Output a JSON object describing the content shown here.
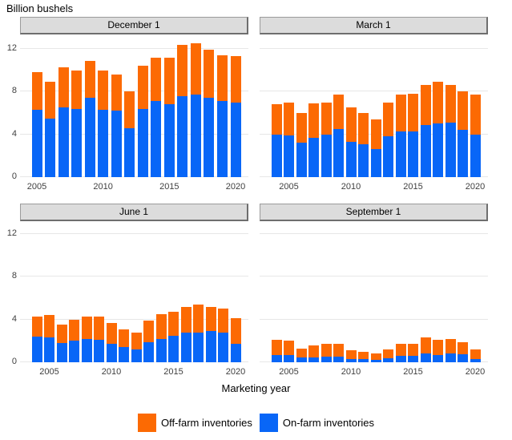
{
  "title": "Billion bushels",
  "x_axis_title": "Marketing year",
  "legend": {
    "items": [
      {
        "label": "Off-farm inventories",
        "color": "#fc6a03",
        "series": "off_farm"
      },
      {
        "label": "On-farm inventories",
        "color": "#0866f7",
        "series": "on_farm"
      }
    ]
  },
  "chart_data": {
    "type": "bar",
    "stacked": true,
    "title": "Billion bushels",
    "xlabel": "Marketing year",
    "ylabel": "Billion bushels",
    "unit": "billion bushels",
    "ylim": [
      0,
      13.35
    ],
    "yticks": [
      0,
      4,
      8,
      12
    ],
    "xticks": [
      2005,
      2010,
      2015,
      2020
    ],
    "grid": "horizontal-major-only",
    "legend_position": "bottom",
    "series_colors": {
      "off_farm": "#fc6a03",
      "on_farm": "#0866f7"
    },
    "panels": [
      {
        "label": "December 1",
        "years": [
          2005,
          2006,
          2007,
          2008,
          2009,
          2010,
          2011,
          2012,
          2013,
          2014,
          2015,
          2016,
          2017,
          2018,
          2019,
          2020
        ],
        "on_farm": [
          6.3,
          5.5,
          6.5,
          6.4,
          7.4,
          6.3,
          6.2,
          4.6,
          6.4,
          7.1,
          6.8,
          7.6,
          7.7,
          7.4,
          7.1,
          7.0
        ],
        "off_farm": [
          3.5,
          3.4,
          3.8,
          3.6,
          3.5,
          3.7,
          3.4,
          3.4,
          4.0,
          4.1,
          4.4,
          4.8,
          4.8,
          4.5,
          4.3,
          4.3
        ],
        "totals": [
          9.8,
          8.9,
          10.3,
          10.0,
          10.9,
          10.0,
          9.6,
          8.0,
          10.4,
          11.2,
          11.2,
          12.4,
          12.5,
          11.9,
          11.4,
          11.3
        ]
      },
      {
        "label": "March 1",
        "years": [
          2004,
          2005,
          2006,
          2007,
          2008,
          2009,
          2010,
          2011,
          2012,
          2013,
          2014,
          2015,
          2016,
          2017,
          2018,
          2019,
          2020
        ],
        "on_farm": [
          4.0,
          3.9,
          3.2,
          3.7,
          4.0,
          4.5,
          3.3,
          3.1,
          2.6,
          3.8,
          4.3,
          4.3,
          4.9,
          5.0,
          5.1,
          4.4,
          4.0
        ],
        "off_farm": [
          2.8,
          3.1,
          2.8,
          3.2,
          3.0,
          3.2,
          3.2,
          2.9,
          2.8,
          3.2,
          3.4,
          3.5,
          3.7,
          3.9,
          3.5,
          3.6,
          3.7
        ],
        "totals": [
          6.8,
          7.0,
          6.0,
          6.9,
          7.0,
          7.7,
          6.5,
          6.0,
          5.4,
          7.0,
          7.7,
          7.8,
          8.6,
          8.9,
          8.6,
          8.0,
          7.7
        ]
      },
      {
        "label": "June 1",
        "years": [
          2004,
          2005,
          2006,
          2007,
          2008,
          2009,
          2010,
          2011,
          2012,
          2013,
          2014,
          2015,
          2016,
          2017,
          2018,
          2019,
          2020
        ],
        "on_farm": [
          2.4,
          2.3,
          1.8,
          2.0,
          2.2,
          2.1,
          1.7,
          1.4,
          1.2,
          1.9,
          2.2,
          2.5,
          2.8,
          2.8,
          2.9,
          2.8,
          1.7
        ],
        "off_farm": [
          1.9,
          2.1,
          1.7,
          2.0,
          2.1,
          2.2,
          2.0,
          1.7,
          1.6,
          2.0,
          2.3,
          2.2,
          2.4,
          2.6,
          2.3,
          2.2,
          2.4
        ],
        "totals": [
          4.3,
          4.4,
          3.5,
          4.0,
          4.3,
          4.3,
          3.7,
          3.1,
          2.8,
          3.9,
          4.5,
          4.7,
          5.2,
          5.4,
          5.2,
          5.0,
          4.1
        ]
      },
      {
        "label": "September 1",
        "years": [
          2004,
          2005,
          2006,
          2007,
          2008,
          2009,
          2010,
          2011,
          2012,
          2013,
          2014,
          2015,
          2016,
          2017,
          2018,
          2019,
          2020
        ],
        "on_farm": [
          0.7,
          0.7,
          0.45,
          0.45,
          0.5,
          0.55,
          0.3,
          0.3,
          0.2,
          0.35,
          0.6,
          0.6,
          0.8,
          0.7,
          0.8,
          0.75,
          0.3
        ],
        "off_farm": [
          1.4,
          1.3,
          0.85,
          1.15,
          1.2,
          1.15,
          0.8,
          0.7,
          0.6,
          0.85,
          1.1,
          1.1,
          1.5,
          1.4,
          1.4,
          1.15,
          0.9
        ],
        "totals": [
          2.1,
          2.0,
          1.3,
          1.6,
          1.7,
          1.7,
          1.1,
          1.0,
          0.8,
          1.2,
          1.7,
          1.7,
          2.3,
          2.1,
          2.2,
          1.9,
          1.2
        ]
      }
    ]
  }
}
